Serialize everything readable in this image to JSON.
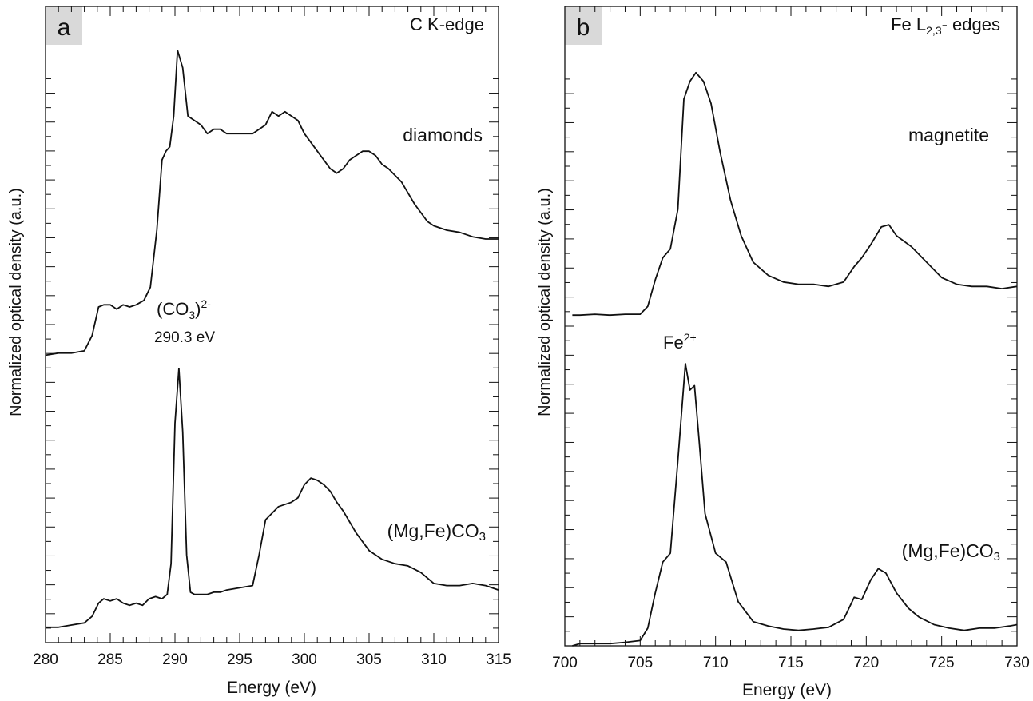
{
  "chart_data": [
    {
      "type": "line",
      "panel_label": "a",
      "annotation_title": "C K-edge",
      "xlabel": "Energy (eV)",
      "ylabel": "Normalized optical density (a.u.)",
      "xlim": [
        280,
        315
      ],
      "ylim": [
        0,
        1.45
      ],
      "x_ticks": [
        280,
        285,
        290,
        295,
        300,
        305,
        310,
        315
      ],
      "y_tick_labels_shown": false,
      "grid": false,
      "series": [
        {
          "label": "diamonds",
          "points": [
            [
              280,
              0.655
            ],
            [
              281,
              0.66
            ],
            [
              282,
              0.66
            ],
            [
              283,
              0.665
            ],
            [
              283.6,
              0.7
            ],
            [
              284.1,
              0.765
            ],
            [
              284.5,
              0.77
            ],
            [
              285,
              0.77
            ],
            [
              285.5,
              0.76
            ],
            [
              286,
              0.77
            ],
            [
              286.5,
              0.765
            ],
            [
              287,
              0.77
            ],
            [
              287.6,
              0.78
            ],
            [
              288.1,
              0.81
            ],
            [
              288.6,
              0.94
            ],
            [
              289.0,
              1.1
            ],
            [
              289.3,
              1.12
            ],
            [
              289.6,
              1.13
            ],
            [
              289.9,
              1.2
            ],
            [
              290.2,
              1.35
            ],
            [
              290.6,
              1.31
            ],
            [
              291,
              1.2
            ],
            [
              291.5,
              1.19
            ],
            [
              292,
              1.18
            ],
            [
              292.5,
              1.16
            ],
            [
              293,
              1.17
            ],
            [
              293.5,
              1.17
            ],
            [
              294,
              1.16
            ],
            [
              295,
              1.16
            ],
            [
              296,
              1.16
            ],
            [
              297,
              1.18
            ],
            [
              297.5,
              1.21
            ],
            [
              298,
              1.2
            ],
            [
              298.5,
              1.21
            ],
            [
              299,
              1.2
            ],
            [
              299.5,
              1.19
            ],
            [
              300,
              1.16
            ],
            [
              301,
              1.12
            ],
            [
              302,
              1.08
            ],
            [
              302.5,
              1.07
            ],
            [
              303,
              1.08
            ],
            [
              303.5,
              1.1
            ],
            [
              304,
              1.11
            ],
            [
              304.5,
              1.12
            ],
            [
              305,
              1.12
            ],
            [
              305.5,
              1.11
            ],
            [
              306,
              1.09
            ],
            [
              306.5,
              1.08
            ],
            [
              307.5,
              1.05
            ],
            [
              308.5,
              1.0
            ],
            [
              309.5,
              0.96
            ],
            [
              310,
              0.95
            ],
            [
              311,
              0.94
            ],
            [
              312,
              0.935
            ],
            [
              313,
              0.925
            ],
            [
              314,
              0.92
            ],
            [
              315,
              0.92
            ]
          ]
        },
        {
          "label": "(Mg,Fe)CO3",
          "peak_annotation": "(CO3)2-",
          "peak_value_label": "290.3 eV",
          "points": [
            [
              280,
              0.035
            ],
            [
              281,
              0.035
            ],
            [
              282,
              0.04
            ],
            [
              283,
              0.045
            ],
            [
              283.6,
              0.06
            ],
            [
              284.1,
              0.09
            ],
            [
              284.5,
              0.1
            ],
            [
              285,
              0.095
            ],
            [
              285.5,
              0.1
            ],
            [
              286,
              0.09
            ],
            [
              286.5,
              0.085
            ],
            [
              287,
              0.09
            ],
            [
              287.5,
              0.085
            ],
            [
              288,
              0.1
            ],
            [
              288.5,
              0.105
            ],
            [
              289,
              0.1
            ],
            [
              289.4,
              0.11
            ],
            [
              289.7,
              0.18
            ],
            [
              290.0,
              0.5
            ],
            [
              290.3,
              0.625
            ],
            [
              290.6,
              0.48
            ],
            [
              290.9,
              0.2
            ],
            [
              291.2,
              0.115
            ],
            [
              291.5,
              0.11
            ],
            [
              292,
              0.11
            ],
            [
              292.5,
              0.11
            ],
            [
              293,
              0.115
            ],
            [
              293.5,
              0.115
            ],
            [
              294,
              0.12
            ],
            [
              295,
              0.125
            ],
            [
              296,
              0.13
            ],
            [
              296.5,
              0.2
            ],
            [
              297,
              0.28
            ],
            [
              298,
              0.31
            ],
            [
              299,
              0.32
            ],
            [
              299.5,
              0.33
            ],
            [
              300,
              0.36
            ],
            [
              300.5,
              0.375
            ],
            [
              301,
              0.37
            ],
            [
              301.5,
              0.36
            ],
            [
              302,
              0.345
            ],
            [
              302.5,
              0.32
            ],
            [
              303,
              0.3
            ],
            [
              304,
              0.25
            ],
            [
              305,
              0.21
            ],
            [
              306,
              0.19
            ],
            [
              307,
              0.18
            ],
            [
              308,
              0.175
            ],
            [
              309,
              0.16
            ],
            [
              310,
              0.135
            ],
            [
              311,
              0.13
            ],
            [
              312,
              0.13
            ],
            [
              313,
              0.135
            ],
            [
              314,
              0.13
            ],
            [
              315,
              0.12
            ]
          ]
        }
      ]
    },
    {
      "type": "line",
      "panel_label": "b",
      "annotation_title": "Fe L2,3- edges",
      "xlabel": "Energy (eV)",
      "ylabel": "Normalized optical density (a.u.)",
      "xlim": [
        700,
        730
      ],
      "ylim": [
        0,
        1.45
      ],
      "x_ticks": [
        700,
        705,
        710,
        715,
        720,
        725,
        730
      ],
      "y_tick_labels_shown": false,
      "grid": false,
      "series": [
        {
          "label": "magnetite",
          "points": [
            [
              700.5,
              0.75
            ],
            [
              701,
              0.75
            ],
            [
              702,
              0.752
            ],
            [
              703,
              0.75
            ],
            [
              704,
              0.752
            ],
            [
              705,
              0.752
            ],
            [
              705.5,
              0.77
            ],
            [
              706,
              0.83
            ],
            [
              706.5,
              0.88
            ],
            [
              707,
              0.9
            ],
            [
              707.5,
              0.99
            ],
            [
              707.9,
              1.24
            ],
            [
              708.3,
              1.28
            ],
            [
              708.7,
              1.3
            ],
            [
              709.2,
              1.28
            ],
            [
              709.7,
              1.23
            ],
            [
              710.3,
              1.12
            ],
            [
              711,
              1.01
            ],
            [
              711.7,
              0.93
            ],
            [
              712.5,
              0.87
            ],
            [
              713.5,
              0.84
            ],
            [
              714.5,
              0.825
            ],
            [
              715.5,
              0.82
            ],
            [
              716.5,
              0.82
            ],
            [
              717.5,
              0.815
            ],
            [
              718.5,
              0.825
            ],
            [
              719.2,
              0.86
            ],
            [
              719.7,
              0.88
            ],
            [
              720.3,
              0.91
            ],
            [
              721,
              0.95
            ],
            [
              721.5,
              0.955
            ],
            [
              722,
              0.93
            ],
            [
              723,
              0.905
            ],
            [
              724,
              0.87
            ],
            [
              725,
              0.835
            ],
            [
              726,
              0.82
            ],
            [
              727,
              0.815
            ],
            [
              728,
              0.815
            ],
            [
              729,
              0.81
            ],
            [
              730,
              0.815
            ]
          ]
        },
        {
          "label": "(Mg,Fe)CO3",
          "peak_annotation": "Fe2+",
          "points": [
            [
              700.5,
              0.0
            ],
            [
              701,
              0.005
            ],
            [
              702,
              0.005
            ],
            [
              703,
              0.005
            ],
            [
              704,
              0.008
            ],
            [
              705,
              0.012
            ],
            [
              705.5,
              0.04
            ],
            [
              706,
              0.12
            ],
            [
              706.5,
              0.19
            ],
            [
              707,
              0.21
            ],
            [
              707.5,
              0.42
            ],
            [
              708,
              0.64
            ],
            [
              708.3,
              0.58
            ],
            [
              708.6,
              0.59
            ],
            [
              708.9,
              0.47
            ],
            [
              709.3,
              0.3
            ],
            [
              710,
              0.21
            ],
            [
              710.7,
              0.19
            ],
            [
              711.5,
              0.1
            ],
            [
              712.5,
              0.055
            ],
            [
              713.5,
              0.045
            ],
            [
              714.5,
              0.038
            ],
            [
              715.5,
              0.035
            ],
            [
              716.5,
              0.038
            ],
            [
              717.5,
              0.042
            ],
            [
              718.5,
              0.06
            ],
            [
              719.2,
              0.11
            ],
            [
              719.7,
              0.105
            ],
            [
              720.3,
              0.15
            ],
            [
              720.8,
              0.175
            ],
            [
              721.3,
              0.165
            ],
            [
              722,
              0.12
            ],
            [
              722.8,
              0.085
            ],
            [
              723.5,
              0.065
            ],
            [
              724.5,
              0.048
            ],
            [
              725.5,
              0.04
            ],
            [
              726.5,
              0.035
            ],
            [
              727.5,
              0.04
            ],
            [
              728.5,
              0.04
            ],
            [
              729.5,
              0.045
            ],
            [
              730,
              0.048
            ]
          ]
        }
      ]
    }
  ]
}
